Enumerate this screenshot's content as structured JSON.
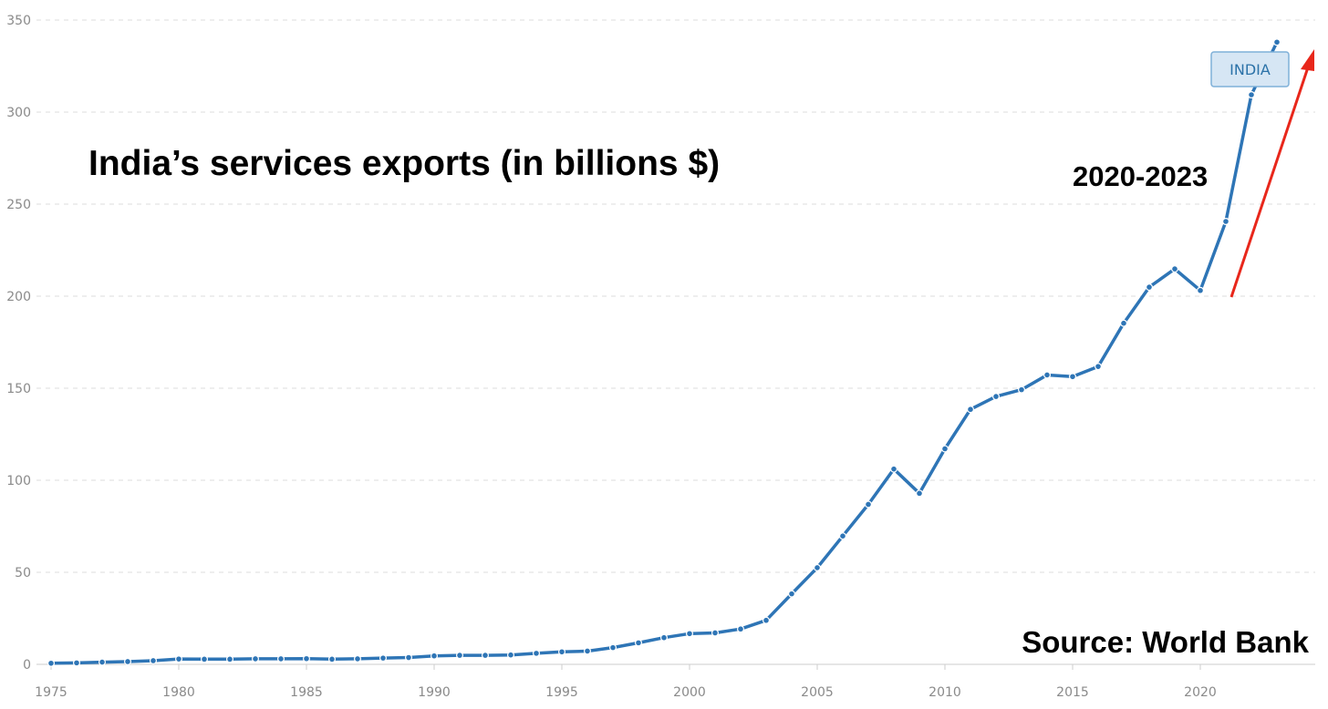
{
  "chart_data": {
    "type": "line",
    "title": "India’s services exports (in billions $)",
    "annotation": "2020-2023",
    "source": "Source: World Bank",
    "series_label": "INDIA",
    "x": [
      1975,
      1976,
      1977,
      1978,
      1979,
      1980,
      1981,
      1982,
      1983,
      1984,
      1985,
      1986,
      1987,
      1988,
      1989,
      1990,
      1991,
      1992,
      1993,
      1994,
      1995,
      1996,
      1997,
      1998,
      1999,
      2000,
      2001,
      2002,
      2003,
      2004,
      2005,
      2006,
      2007,
      2008,
      2009,
      2010,
      2011,
      2012,
      2013,
      2014,
      2015,
      2016,
      2017,
      2018,
      2019,
      2020,
      2021,
      2022,
      2023
    ],
    "series": [
      {
        "name": "INDIA",
        "color": "#2e75b6",
        "values": [
          0.6,
          0.8,
          1.2,
          1.5,
          2.0,
          2.9,
          2.8,
          2.8,
          3.0,
          3.0,
          3.1,
          2.8,
          3.0,
          3.4,
          3.7,
          4.6,
          4.9,
          4.9,
          5.1,
          6.0,
          6.8,
          7.2,
          9.1,
          11.7,
          14.5,
          16.7,
          17.1,
          19.2,
          23.9,
          38.3,
          52.5,
          69.7,
          86.9,
          106.1,
          92.9,
          117.1,
          138.5,
          145.5,
          149.2,
          157.2,
          156.3,
          161.8,
          185.3,
          204.9,
          214.8,
          203.1,
          240.6,
          309.4,
          338.0
        ]
      }
    ],
    "xticks": [
      "1975",
      "1980",
      "1985",
      "1990",
      "1995",
      "2000",
      "2005",
      "2010",
      "2015",
      "2020"
    ],
    "yticks": [
      "0",
      "50",
      "100",
      "150",
      "200",
      "250",
      "300",
      "350"
    ],
    "ylim": [
      0,
      350
    ],
    "xlim": [
      1975,
      2024
    ],
    "grid": true,
    "arrow_color": "#e8271b",
    "label_color": "#2b72a8"
  }
}
